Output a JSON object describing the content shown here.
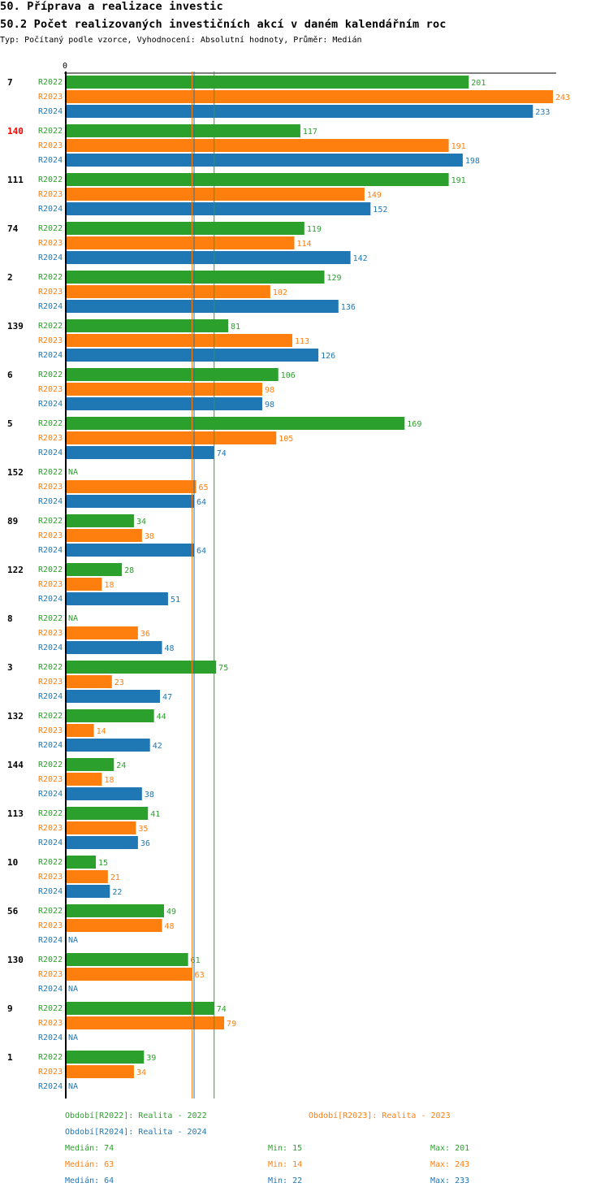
{
  "header": {
    "title": "50. Příprava a realizace investic",
    "subtitle": "50.2 Počet realizovaných investičních akcí v daném kalendářním roc",
    "info": "Typ: Počítaný podle vzorce, Vyhodnocení: Absolutní hodnoty, Průměr: Medián"
  },
  "chart_data": {
    "type": "bar",
    "orientation": "horizontal",
    "title": "50.2 Počet realizovaných investičních akcí v daném kalendářním roc",
    "x_axis_zero_label": "0",
    "xlim": [
      0,
      243
    ],
    "categories": [
      "7",
      "140",
      "111",
      "74",
      "2",
      "139",
      "6",
      "5",
      "152",
      "89",
      "122",
      "8",
      "3",
      "132",
      "144",
      "113",
      "10",
      "56",
      "130",
      "9",
      "1"
    ],
    "highlight_category": "140",
    "na_label": "NA",
    "series": [
      {
        "name": "R2022",
        "color": "#2ca02c",
        "values": [
          201,
          117,
          191,
          119,
          129,
          81,
          106,
          169,
          null,
          34,
          28,
          null,
          75,
          44,
          24,
          41,
          15,
          49,
          61,
          74,
          39
        ]
      },
      {
        "name": "R2023",
        "color": "#ff7f0e",
        "values": [
          243,
          191,
          149,
          114,
          102,
          113,
          98,
          105,
          65,
          38,
          18,
          36,
          23,
          14,
          18,
          35,
          21,
          48,
          63,
          79,
          34
        ]
      },
      {
        "name": "R2024",
        "color": "#1f77b4",
        "values": [
          233,
          198,
          152,
          142,
          136,
          126,
          98,
          74,
          64,
          64,
          51,
          48,
          47,
          42,
          38,
          36,
          22,
          null,
          null,
          null,
          null
        ]
      }
    ],
    "median_lines": [
      {
        "series": "R2022",
        "value": 74
      },
      {
        "series": "R2023",
        "value": 63
      },
      {
        "series": "R2024",
        "value": 64
      }
    ]
  },
  "legend": {
    "period_2022": "Období[R2022]: Realita - 2022",
    "period_2023": "Období[R2023]: Realita - 2023",
    "period_2024": "Období[R2024]: Realita - 2024",
    "stats": [
      {
        "median": "Medián: 74",
        "min": "Min: 15",
        "max": "Max: 201",
        "color": "#2ca02c"
      },
      {
        "median": "Medián: 63",
        "min": "Min: 14",
        "max": "Max: 243",
        "color": "#ff7f0e"
      },
      {
        "median": "Medián: 64",
        "min": "Min: 22",
        "max": "Max: 233",
        "color": "#1f77b4"
      }
    ]
  }
}
